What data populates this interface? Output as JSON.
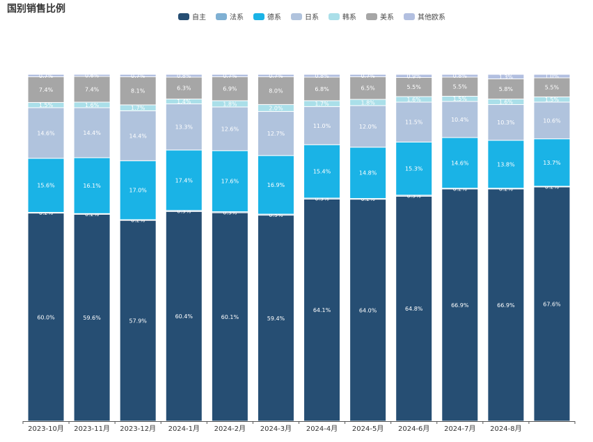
{
  "title": "国别销售比例",
  "chart_data": {
    "type": "bar",
    "stacked": true,
    "title": "国别销售比例",
    "xlabel": "",
    "ylabel": "",
    "ylim": [
      0,
      100
    ],
    "categories": [
      "2023-10月",
      "2023-11月",
      "2023-12月",
      "2024-1月",
      "2024-2月",
      "2024-3月",
      "2024-4月",
      "2024-5月",
      "2024-6月",
      "2024-7月",
      "2024-8月",
      ""
    ],
    "series": [
      {
        "name": "自主",
        "color": "#264e73",
        "values": [
          60.0,
          59.6,
          57.9,
          60.4,
          60.1,
          59.4,
          64.1,
          64.0,
          64.8,
          66.9,
          66.9,
          67.6
        ],
        "labels": [
          "60.0%",
          "59.6%",
          "57.9%",
          "60.4%",
          "60.1%",
          "59.4%",
          "64.1%",
          "64.0%",
          "64.8%",
          "66.9%",
          "66.9%",
          "67.6%"
        ]
      },
      {
        "name": "法系",
        "color": "#7fb0d3",
        "values": [
          0.2,
          0.2,
          0.2,
          0.3,
          0.3,
          0.3,
          0.3,
          0.2,
          0.3,
          0.2,
          0.2,
          0.2
        ],
        "labels": [
          "0.2%",
          "0.2%",
          "0.2%",
          "0.3%",
          "0.3%",
          "0.3%",
          "0.3%",
          "0.2%",
          "0.3%",
          "0.2%",
          "0.2%",
          "0.2%"
        ]
      },
      {
        "name": "德系",
        "color": "#1ab3e6",
        "values": [
          15.6,
          16.1,
          17.0,
          17.4,
          17.6,
          16.9,
          15.4,
          14.8,
          15.3,
          14.6,
          13.8,
          13.7
        ],
        "labels": [
          "15.6%",
          "16.1%",
          "17.0%",
          "17.4%",
          "17.6%",
          "16.9%",
          "15.4%",
          "14.8%",
          "15.3%",
          "14.6%",
          "13.8%",
          "13.7%"
        ]
      },
      {
        "name": "日系",
        "color": "#b0c3dd",
        "values": [
          14.6,
          14.4,
          14.4,
          13.3,
          12.6,
          12.7,
          11.0,
          12.0,
          11.5,
          10.4,
          10.3,
          10.6
        ],
        "labels": [
          "14.6%",
          "14.4%",
          "14.4%",
          "13.3%",
          "12.6%",
          "12.7%",
          "11.0%",
          "12.0%",
          "11.5%",
          "10.4%",
          "10.3%",
          "10.6%"
        ]
      },
      {
        "name": "韩系",
        "color": "#aadfe9",
        "values": [
          1.5,
          1.6,
          1.7,
          1.4,
          1.8,
          2.0,
          1.7,
          1.8,
          1.6,
          1.5,
          1.6,
          1.5
        ],
        "labels": [
          "1.5%",
          "1.6%",
          "1.7%",
          "1.4%",
          "1.8%",
          "2.0%",
          "1.7%",
          "1.8%",
          "1.6%",
          "1.5%",
          "1.6%",
          "1.5%"
        ]
      },
      {
        "name": "美系",
        "color": "#a6a6a6",
        "values": [
          7.4,
          7.4,
          8.1,
          6.3,
          6.9,
          8.0,
          6.8,
          6.5,
          5.5,
          5.5,
          5.8,
          5.5
        ],
        "labels": [
          "7.4%",
          "7.4%",
          "8.1%",
          "6.3%",
          "6.9%",
          "8.0%",
          "6.8%",
          "6.5%",
          "5.5%",
          "5.5%",
          "5.8%",
          "5.5%"
        ]
      },
      {
        "name": "其他欧系",
        "color": "#b2bfe0",
        "values": [
          0.7,
          0.6,
          0.7,
          0.8,
          0.7,
          0.7,
          0.8,
          0.7,
          0.9,
          0.8,
          1.3,
          1.0
        ],
        "labels": [
          "0.7%",
          "0.6%",
          "0.7%",
          "0.8%",
          "0.7%",
          "0.7%",
          "0.8%",
          "0.7%",
          "0.9%",
          "0.8%",
          "1.3%",
          "1.0%"
        ]
      }
    ]
  }
}
